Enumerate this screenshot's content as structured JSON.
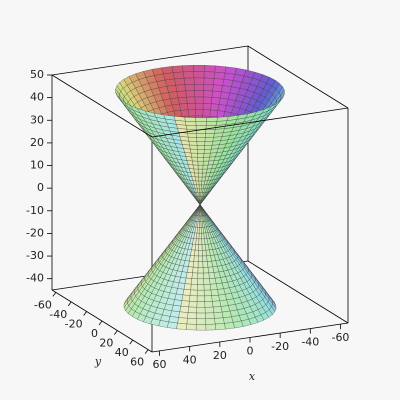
{
  "chart_data": {
    "type": "surface3d",
    "x_label": "x",
    "y_label": "y",
    "xlim": [
      -65,
      65
    ],
    "ylim": [
      -65,
      65
    ],
    "zlim": [
      -45,
      50
    ],
    "xticks": [
      60,
      40,
      20,
      0,
      -20,
      -40,
      -60
    ],
    "yticks": [
      -60,
      -40,
      -20,
      0,
      20,
      40,
      60
    ],
    "zticks": [
      50,
      40,
      30,
      20,
      10,
      0,
      -10,
      -20,
      -30,
      -40
    ]
  }
}
